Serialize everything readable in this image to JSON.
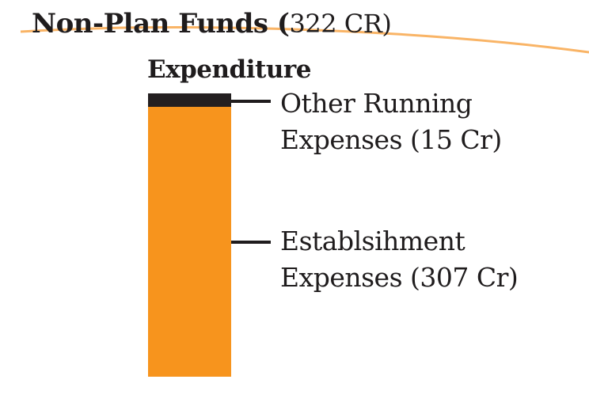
{
  "chart_data": {
    "type": "bar",
    "stacked": true,
    "title": "Non-Plan Funds (",
    "title_total": "322 CR)",
    "category": "Expenditure",
    "unit": "Cr",
    "total": 322,
    "segments": [
      {
        "name": "Other Running",
        "label_line2": "Expenses (15 Cr)",
        "value": 15,
        "color": "#231f20"
      },
      {
        "name": "Establsihment",
        "label_line2": "Expenses (307 Cr)",
        "value": 307,
        "color": "#f7941d"
      }
    ]
  },
  "colors": {
    "accent": "#f7941d",
    "text": "#1f1c1d",
    "curve": "#f9b466"
  }
}
